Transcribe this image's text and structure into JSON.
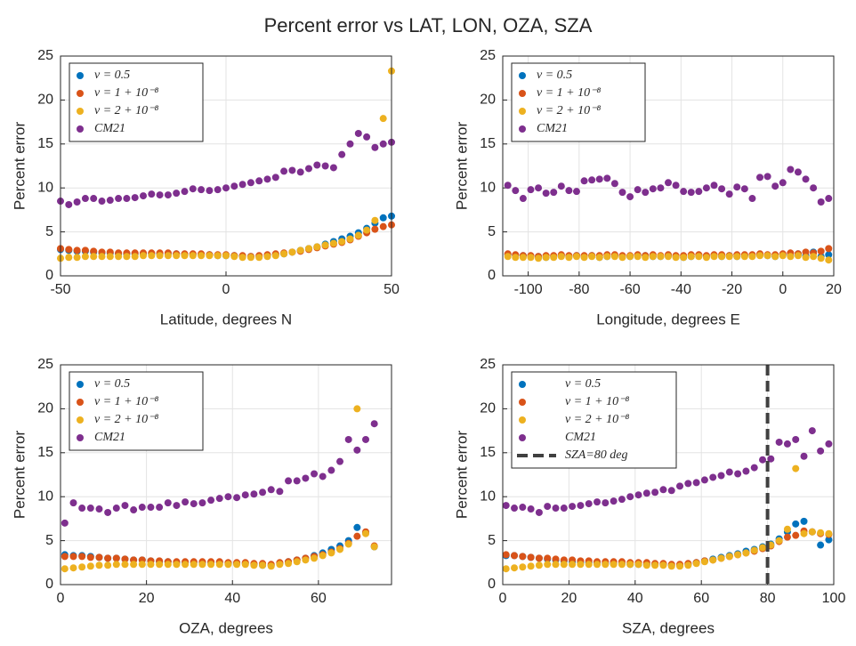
{
  "title": "Percent error vs LAT, LON, OZA, SZA",
  "chart_data": [
    {
      "type": "scatter",
      "xlabel": "Latitude, degrees N",
      "ylabel": "Percent error",
      "xlim": [
        -50,
        50
      ],
      "ylim": [
        0,
        25
      ],
      "xticks": [
        -50,
        0,
        50
      ],
      "yticks": [
        0,
        5,
        10,
        15,
        20,
        25
      ],
      "grid": true,
      "legend": "upper-left",
      "x": [
        -50,
        -47.5,
        -45,
        -42.5,
        -40,
        -37.5,
        -35,
        -32.5,
        -30,
        -27.5,
        -25,
        -22.5,
        -20,
        -17.5,
        -15,
        -12.5,
        -10,
        -7.5,
        -5,
        -2.5,
        0,
        2.5,
        5,
        7.5,
        10,
        12.5,
        15,
        17.5,
        20,
        22.5,
        25,
        27.5,
        30,
        32.5,
        35,
        37.5,
        40,
        42.5,
        45,
        47.5,
        50
      ],
      "series": [
        {
          "name": "ν = 0.5",
          "color": "#0072bd",
          "values": [
            3.0,
            2.9,
            2.8,
            2.8,
            2.7,
            2.6,
            2.6,
            2.5,
            2.5,
            2.5,
            2.5,
            2.5,
            2.5,
            2.5,
            2.5,
            2.4,
            2.4,
            2.4,
            2.4,
            2.3,
            2.3,
            2.3,
            2.2,
            2.2,
            2.2,
            2.3,
            2.4,
            2.5,
            2.7,
            2.9,
            3.1,
            3.3,
            3.6,
            3.9,
            4.2,
            4.5,
            4.9,
            5.4,
            6.0,
            6.6,
            6.8
          ]
        },
        {
          "name": "ν = 1 + 10⁻⁸",
          "color": "#d95319",
          "values": [
            3.1,
            3.0,
            2.9,
            2.9,
            2.8,
            2.7,
            2.7,
            2.6,
            2.6,
            2.6,
            2.6,
            2.6,
            2.6,
            2.6,
            2.5,
            2.5,
            2.5,
            2.5,
            2.4,
            2.4,
            2.4,
            2.3,
            2.3,
            2.2,
            2.3,
            2.4,
            2.5,
            2.6,
            2.7,
            2.8,
            3.0,
            3.2,
            3.4,
            3.6,
            3.8,
            4.1,
            4.5,
            4.9,
            5.3,
            5.6,
            5.8
          ]
        },
        {
          "name": "ν = 2 + 10⁻⁸",
          "color": "#edb120",
          "values": [
            2.0,
            2.1,
            2.1,
            2.2,
            2.2,
            2.2,
            2.2,
            2.2,
            2.2,
            2.2,
            2.3,
            2.3,
            2.3,
            2.3,
            2.3,
            2.3,
            2.3,
            2.3,
            2.3,
            2.3,
            2.3,
            2.2,
            2.1,
            2.1,
            2.1,
            2.2,
            2.3,
            2.5,
            2.7,
            2.9,
            3.1,
            3.3,
            3.5,
            3.7,
            3.9,
            4.2,
            4.6,
            5.2,
            6.3,
            17.9,
            23.3
          ]
        },
        {
          "name": "CM21",
          "color": "#7e2f8e",
          "values": [
            8.5,
            8.1,
            8.4,
            8.8,
            8.8,
            8.5,
            8.6,
            8.8,
            8.8,
            8.9,
            9.1,
            9.3,
            9.2,
            9.2,
            9.4,
            9.6,
            9.9,
            9.8,
            9.7,
            9.8,
            10.0,
            10.2,
            10.4,
            10.6,
            10.8,
            11.0,
            11.2,
            11.9,
            12.0,
            11.8,
            12.2,
            12.6,
            12.5,
            12.3,
            13.8,
            15.0,
            16.2,
            15.8,
            14.6,
            15.0,
            15.2
          ]
        }
      ]
    },
    {
      "type": "scatter",
      "xlabel": "Longitude, degrees E",
      "ylabel": "Percent error",
      "xlim": [
        -110,
        20
      ],
      "ylim": [
        0,
        25
      ],
      "xticks": [
        -100,
        -80,
        -60,
        -40,
        -20,
        0,
        20
      ],
      "yticks": [
        0,
        5,
        10,
        15,
        20,
        25
      ],
      "grid": true,
      "legend": "upper-left",
      "x": [
        -108,
        -105,
        -102,
        -99,
        -96,
        -93,
        -90,
        -87,
        -84,
        -81,
        -78,
        -75,
        -72,
        -69,
        -66,
        -63,
        -60,
        -57,
        -54,
        -51,
        -48,
        -45,
        -42,
        -39,
        -36,
        -33,
        -30,
        -27,
        -24,
        -21,
        -18,
        -15,
        -12,
        -9,
        -6,
        -3,
        0,
        3,
        6,
        9,
        12,
        15,
        18
      ],
      "series": [
        {
          "name": "ν = 0.5",
          "color": "#0072bd",
          "values": [
            2.4,
            2.3,
            2.3,
            2.2,
            2.2,
            2.1,
            2.2,
            2.3,
            2.2,
            2.3,
            2.2,
            2.3,
            2.1,
            2.2,
            2.3,
            2.2,
            2.2,
            2.3,
            2.3,
            2.2,
            2.2,
            2.3,
            2.2,
            2.1,
            2.2,
            2.3,
            2.2,
            2.3,
            2.2,
            2.3,
            2.2,
            2.3,
            2.3,
            2.4,
            2.3,
            2.2,
            2.4,
            2.3,
            2.5,
            2.3,
            2.7,
            2.2,
            2.4
          ]
        },
        {
          "name": "ν = 1 + 10⁻⁸",
          "color": "#d95319",
          "values": [
            2.5,
            2.4,
            2.3,
            2.3,
            2.2,
            2.3,
            2.3,
            2.4,
            2.3,
            2.3,
            2.3,
            2.3,
            2.3,
            2.4,
            2.4,
            2.3,
            2.3,
            2.4,
            2.3,
            2.4,
            2.3,
            2.4,
            2.3,
            2.3,
            2.4,
            2.4,
            2.3,
            2.4,
            2.4,
            2.3,
            2.4,
            2.4,
            2.4,
            2.5,
            2.4,
            2.4,
            2.5,
            2.6,
            2.5,
            2.7,
            2.6,
            2.8,
            3.1
          ]
        },
        {
          "name": "ν = 2 + 10⁻⁸",
          "color": "#edb120",
          "values": [
            2.2,
            2.1,
            2.1,
            2.1,
            2.0,
            2.1,
            2.1,
            2.2,
            2.1,
            2.2,
            2.1,
            2.2,
            2.1,
            2.2,
            2.2,
            2.1,
            2.2,
            2.2,
            2.1,
            2.2,
            2.2,
            2.2,
            2.1,
            2.1,
            2.2,
            2.2,
            2.1,
            2.2,
            2.2,
            2.2,
            2.2,
            2.2,
            2.2,
            2.3,
            2.3,
            2.2,
            2.3,
            2.2,
            2.3,
            2.1,
            2.2,
            2.0,
            1.8
          ]
        },
        {
          "name": "CM21",
          "color": "#7e2f8e",
          "values": [
            10.3,
            9.7,
            8.8,
            9.8,
            10.0,
            9.4,
            9.5,
            10.2,
            9.7,
            9.6,
            10.8,
            10.9,
            11.0,
            11.1,
            10.5,
            9.5,
            9.0,
            9.8,
            9.5,
            9.9,
            10.0,
            10.6,
            10.3,
            9.6,
            9.5,
            9.6,
            10.0,
            10.3,
            9.9,
            9.3,
            10.1,
            9.9,
            8.8,
            11.2,
            11.3,
            10.2,
            10.6,
            12.1,
            11.8,
            11.0,
            10.0,
            8.4,
            8.8
          ]
        }
      ]
    },
    {
      "type": "scatter",
      "xlabel": "OZA, degrees",
      "ylabel": "Percent error",
      "xlim": [
        0,
        77
      ],
      "ylim": [
        0,
        25
      ],
      "xticks": [
        0,
        20,
        40,
        60
      ],
      "yticks": [
        0,
        5,
        10,
        15,
        20,
        25
      ],
      "grid": true,
      "legend": "upper-left",
      "x": [
        1,
        3,
        5,
        7,
        9,
        11,
        13,
        15,
        17,
        19,
        21,
        23,
        25,
        27,
        29,
        31,
        33,
        35,
        37,
        39,
        41,
        43,
        45,
        47,
        49,
        51,
        53,
        55,
        57,
        59,
        61,
        63,
        65,
        67,
        69,
        71,
        73
      ],
      "series": [
        {
          "name": "ν = 0.5",
          "color": "#0072bd",
          "values": [
            3.4,
            3.3,
            3.3,
            3.2,
            3.1,
            3.0,
            3.0,
            2.9,
            2.8,
            2.8,
            2.7,
            2.6,
            2.6,
            2.5,
            2.5,
            2.5,
            2.5,
            2.5,
            2.5,
            2.4,
            2.4,
            2.4,
            2.3,
            2.2,
            2.2,
            2.4,
            2.6,
            2.8,
            3.0,
            3.3,
            3.6,
            4.0,
            4.4,
            5.0,
            6.5,
            5.9,
            4.3
          ]
        },
        {
          "name": "ν = 1 + 10⁻⁸",
          "color": "#d95319",
          "values": [
            3.2,
            3.2,
            3.2,
            3.1,
            3.1,
            3.0,
            3.0,
            2.9,
            2.8,
            2.8,
            2.7,
            2.7,
            2.6,
            2.6,
            2.6,
            2.6,
            2.6,
            2.6,
            2.6,
            2.5,
            2.5,
            2.5,
            2.4,
            2.4,
            2.3,
            2.5,
            2.6,
            2.8,
            3.0,
            3.2,
            3.4,
            3.7,
            4.1,
            4.7,
            5.5,
            6.0,
            4.4
          ]
        },
        {
          "name": "ν = 2 + 10⁻⁸",
          "color": "#edb120",
          "values": [
            1.8,
            1.9,
            2.0,
            2.1,
            2.2,
            2.2,
            2.3,
            2.3,
            2.3,
            2.3,
            2.3,
            2.3,
            2.3,
            2.3,
            2.3,
            2.3,
            2.3,
            2.3,
            2.3,
            2.3,
            2.3,
            2.3,
            2.2,
            2.2,
            2.1,
            2.3,
            2.4,
            2.6,
            2.8,
            3.0,
            3.3,
            3.6,
            4.0,
            4.6,
            20.0,
            5.8,
            4.3
          ]
        },
        {
          "name": "CM21",
          "color": "#7e2f8e",
          "values": [
            7.0,
            9.3,
            8.7,
            8.7,
            8.6,
            8.2,
            8.7,
            9.0,
            8.5,
            8.8,
            8.8,
            8.8,
            9.3,
            9.0,
            9.4,
            9.2,
            9.3,
            9.6,
            9.8,
            10.0,
            9.9,
            10.2,
            10.3,
            10.5,
            10.8,
            10.6,
            11.8,
            11.8,
            12.1,
            12.6,
            12.3,
            13.0,
            14.0,
            16.5,
            15.3,
            16.5,
            18.3
          ]
        }
      ]
    },
    {
      "type": "scatter",
      "xlabel": "SZA, degrees",
      "ylabel": "Percent error",
      "xlim": [
        0,
        100
      ],
      "ylim": [
        0,
        25
      ],
      "xticks": [
        0,
        20,
        40,
        60,
        80,
        100
      ],
      "yticks": [
        0,
        5,
        10,
        15,
        20,
        25
      ],
      "grid": true,
      "legend": "upper-left",
      "x": [
        1,
        3.5,
        6,
        8.5,
        11,
        13.5,
        16,
        18.5,
        21,
        23.5,
        26,
        28.5,
        31,
        33.5,
        36,
        38.5,
        41,
        43.5,
        46,
        48.5,
        51,
        53.5,
        56,
        58.5,
        61,
        63.5,
        66,
        68.5,
        71,
        73.5,
        76,
        78.5,
        81,
        83.5,
        86,
        88.5,
        91,
        93.5,
        96,
        98.5
      ],
      "series": [
        {
          "name": "ν = 0.5",
          "color": "#0072bd",
          "values": [
            3.3,
            3.3,
            3.2,
            3.1,
            3.0,
            2.9,
            2.8,
            2.7,
            2.6,
            2.5,
            2.5,
            2.5,
            2.4,
            2.4,
            2.4,
            2.3,
            2.3,
            2.3,
            2.3,
            2.3,
            2.2,
            2.2,
            2.3,
            2.5,
            2.7,
            2.9,
            3.1,
            3.3,
            3.5,
            3.8,
            4.0,
            4.3,
            4.6,
            5.2,
            6.0,
            6.9,
            7.2,
            6.0,
            4.5,
            5.1
          ]
        },
        {
          "name": "ν = 1 + 10⁻⁸",
          "color": "#d95319",
          "values": [
            3.4,
            3.3,
            3.2,
            3.1,
            3.0,
            3.0,
            2.9,
            2.8,
            2.8,
            2.7,
            2.7,
            2.6,
            2.6,
            2.6,
            2.6,
            2.5,
            2.5,
            2.5,
            2.4,
            2.4,
            2.3,
            2.3,
            2.4,
            2.5,
            2.7,
            2.8,
            3.0,
            3.2,
            3.4,
            3.6,
            3.8,
            4.1,
            4.4,
            4.9,
            5.4,
            5.6,
            6.1,
            6.0,
            5.8,
            5.7
          ]
        },
        {
          "name": "ν = 2 + 10⁻⁸",
          "color": "#edb120",
          "values": [
            1.8,
            1.9,
            2.0,
            2.1,
            2.2,
            2.3,
            2.3,
            2.3,
            2.3,
            2.3,
            2.3,
            2.3,
            2.3,
            2.3,
            2.3,
            2.3,
            2.3,
            2.2,
            2.2,
            2.2,
            2.1,
            2.1,
            2.2,
            2.4,
            2.6,
            2.8,
            3.0,
            3.2,
            3.4,
            3.6,
            3.9,
            4.2,
            4.5,
            5.0,
            6.3,
            13.2,
            5.8,
            6.0,
            5.9,
            5.8
          ]
        },
        {
          "name": "CM21",
          "color": "#7e2f8e",
          "values": [
            9.0,
            8.7,
            8.8,
            8.6,
            8.2,
            8.9,
            8.7,
            8.7,
            8.9,
            9.0,
            9.2,
            9.4,
            9.3,
            9.5,
            9.7,
            10.0,
            10.2,
            10.4,
            10.5,
            10.8,
            10.7,
            11.2,
            11.5,
            11.6,
            11.9,
            12.2,
            12.4,
            12.8,
            12.6,
            12.9,
            13.3,
            14.2,
            14.3,
            16.2,
            16.0,
            16.5,
            14.6,
            17.5,
            15.2,
            16.0
          ]
        }
      ],
      "vline": {
        "x": 80,
        "name": "SZA=80 deg",
        "color": "#404040"
      }
    }
  ]
}
